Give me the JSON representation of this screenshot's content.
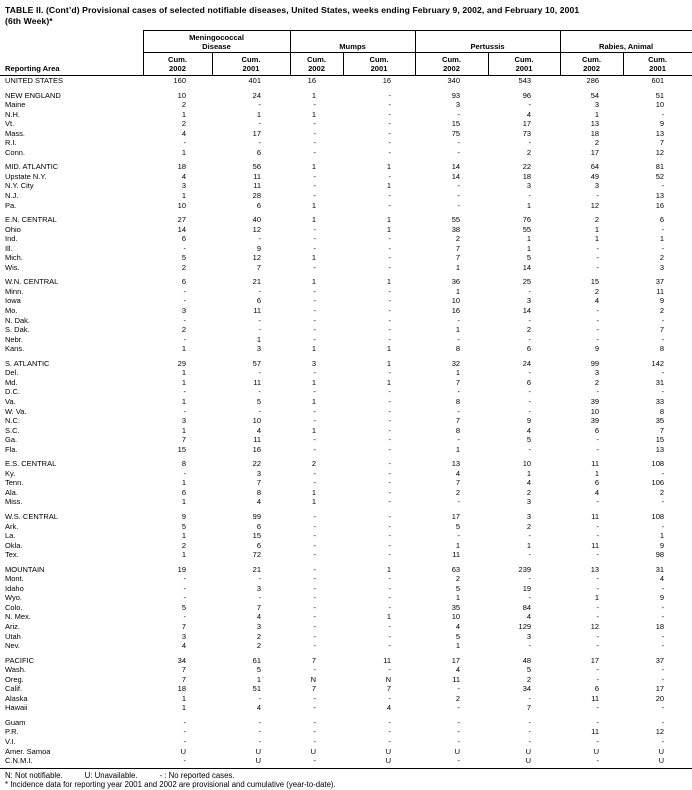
{
  "title": {
    "line1": "TABLE II. (Cont’d) Provisional cases of selected notifiable diseases, United States, weeks ending February 9, 2002, and February 10, 2001",
    "line2": "(6th Week)*"
  },
  "header": {
    "reporting_area": "Reporting Area",
    "groups": [
      "Meningococcal\nDisease",
      "Mumps",
      "Pertussis",
      "Rabies, Animal"
    ],
    "sub": [
      "Cum.\n2002",
      "Cum.\n2001",
      "Cum.\n2002",
      "Cum.\n2001",
      "Cum.\n2002",
      "Cum.\n2001",
      "Cum.\n2002",
      "Cum.\n2001"
    ]
  },
  "sections": [
    {
      "rows": [
        {
          "area": "UNITED STATES",
          "values": [
            "160",
            "401",
            "16",
            "16",
            "340",
            "543",
            "286",
            "601"
          ]
        }
      ]
    },
    {
      "rows": [
        {
          "area": "NEW ENGLAND",
          "values": [
            "10",
            "24",
            "1",
            "-",
            "93",
            "96",
            "54",
            "51"
          ]
        },
        {
          "area": "Maine",
          "values": [
            "2",
            "-",
            "-",
            "-",
            "3",
            "-",
            "3",
            "10"
          ]
        },
        {
          "area": "N.H.",
          "values": [
            "1",
            "1",
            "1",
            "-",
            "-",
            "4",
            "1",
            "-"
          ]
        },
        {
          "area": "Vt.",
          "values": [
            "2",
            "-",
            "-",
            "-",
            "15",
            "17",
            "13",
            "9"
          ]
        },
        {
          "area": "Mass.",
          "values": [
            "4",
            "17",
            "-",
            "-",
            "75",
            "73",
            "18",
            "13"
          ]
        },
        {
          "area": "R.I.",
          "values": [
            "-",
            "-",
            "-",
            "-",
            "-",
            "-",
            "2",
            "7"
          ]
        },
        {
          "area": "Conn.",
          "values": [
            "1",
            "6",
            "-",
            "-",
            "-",
            "2",
            "17",
            "12"
          ]
        }
      ]
    },
    {
      "rows": [
        {
          "area": "MID. ATLANTIC",
          "values": [
            "18",
            "56",
            "1",
            "1",
            "14",
            "22",
            "64",
            "81"
          ]
        },
        {
          "area": "Upstate N.Y.",
          "values": [
            "4",
            "11",
            "-",
            "-",
            "14",
            "18",
            "49",
            "52"
          ]
        },
        {
          "area": "N.Y. City",
          "values": [
            "3",
            "11",
            "-",
            "1",
            "-",
            "3",
            "3",
            "-"
          ]
        },
        {
          "area": "N.J.",
          "values": [
            "1",
            "28",
            "-",
            "-",
            "-",
            "-",
            "-",
            "13"
          ]
        },
        {
          "area": "Pa.",
          "values": [
            "10",
            "6",
            "1",
            "-",
            "-",
            "1",
            "12",
            "16"
          ]
        }
      ]
    },
    {
      "rows": [
        {
          "area": "E.N. CENTRAL",
          "values": [
            "27",
            "40",
            "1",
            "1",
            "55",
            "76",
            "2",
            "6"
          ]
        },
        {
          "area": "Ohio",
          "values": [
            "14",
            "12",
            "-",
            "1",
            "38",
            "55",
            "1",
            "-"
          ]
        },
        {
          "area": "Ind.",
          "values": [
            "6",
            "-",
            "-",
            "-",
            "2",
            "1",
            "1",
            "1"
          ]
        },
        {
          "area": "Ill.",
          "values": [
            "-",
            "9",
            "-",
            "-",
            "7",
            "1",
            "-",
            "-"
          ]
        },
        {
          "area": "Mich.",
          "values": [
            "5",
            "12",
            "1",
            "-",
            "7",
            "5",
            "-",
            "2"
          ]
        },
        {
          "area": "Wis.",
          "values": [
            "2",
            "7",
            "-",
            "-",
            "1",
            "14",
            "-",
            "3"
          ]
        }
      ]
    },
    {
      "rows": [
        {
          "area": "W.N. CENTRAL",
          "values": [
            "6",
            "21",
            "1",
            "1",
            "36",
            "25",
            "15",
            "37"
          ]
        },
        {
          "area": "Minn.",
          "values": [
            "-",
            "-",
            "-",
            "-",
            "1",
            "-",
            "2",
            "11"
          ]
        },
        {
          "area": "Iowa",
          "values": [
            "-",
            "6",
            "-",
            "-",
            "10",
            "3",
            "4",
            "9"
          ]
        },
        {
          "area": "Mo.",
          "values": [
            "3",
            "11",
            "-",
            "-",
            "16",
            "14",
            "-",
            "2"
          ]
        },
        {
          "area": "N. Dak.",
          "values": [
            "-",
            "-",
            "-",
            "-",
            "-",
            "-",
            "-",
            "-"
          ]
        },
        {
          "area": "S. Dak.",
          "values": [
            "2",
            "-",
            "-",
            "-",
            "1",
            "2",
            "-",
            "7"
          ]
        },
        {
          "area": "Nebr.",
          "values": [
            "-",
            "1",
            "-",
            "-",
            "-",
            "-",
            "-",
            "-"
          ]
        },
        {
          "area": "Kans.",
          "values": [
            "1",
            "3",
            "1",
            "1",
            "8",
            "6",
            "9",
            "8"
          ]
        }
      ]
    },
    {
      "rows": [
        {
          "area": "S. ATLANTIC",
          "values": [
            "29",
            "57",
            "3",
            "1",
            "32",
            "24",
            "99",
            "142"
          ]
        },
        {
          "area": "Del.",
          "values": [
            "1",
            "-",
            "-",
            "-",
            "1",
            "-",
            "3",
            "-"
          ]
        },
        {
          "area": "Md.",
          "values": [
            "1",
            "11",
            "1",
            "1",
            "7",
            "6",
            "2",
            "31"
          ]
        },
        {
          "area": "D.C.",
          "values": [
            "-",
            "-",
            "-",
            "-",
            "-",
            "-",
            "-",
            "-"
          ]
        },
        {
          "area": "Va.",
          "values": [
            "1",
            "5",
            "1",
            "-",
            "8",
            "-",
            "39",
            "33"
          ]
        },
        {
          "area": "W. Va.",
          "values": [
            "-",
            "-",
            "-",
            "-",
            "-",
            "-",
            "10",
            "8"
          ]
        },
        {
          "area": "N.C.",
          "values": [
            "3",
            "10",
            "-",
            "-",
            "7",
            "9",
            "39",
            "35"
          ]
        },
        {
          "area": "S.C.",
          "values": [
            "1",
            "4",
            "1",
            "-",
            "8",
            "4",
            "6",
            "7"
          ]
        },
        {
          "area": "Ga.",
          "values": [
            "7",
            "11",
            "-",
            "-",
            "-",
            "5",
            "-",
            "15"
          ]
        },
        {
          "area": "Fla.",
          "values": [
            "15",
            "16",
            "-",
            "-",
            "1",
            "-",
            "-",
            "13"
          ]
        }
      ]
    },
    {
      "rows": [
        {
          "area": "E.S. CENTRAL",
          "values": [
            "8",
            "22",
            "2",
            "-",
            "13",
            "10",
            "11",
            "108"
          ]
        },
        {
          "area": "Ky.",
          "values": [
            "-",
            "3",
            "-",
            "-",
            "4",
            "1",
            "1",
            "-"
          ]
        },
        {
          "area": "Tenn.",
          "values": [
            "1",
            "7",
            "-",
            "-",
            "7",
            "4",
            "6",
            "106"
          ]
        },
        {
          "area": "Ala.",
          "values": [
            "6",
            "8",
            "1",
            "-",
            "2",
            "2",
            "4",
            "2"
          ]
        },
        {
          "area": "Miss.",
          "values": [
            "1",
            "4",
            "1",
            "-",
            "-",
            "3",
            "-",
            "-"
          ]
        }
      ]
    },
    {
      "rows": [
        {
          "area": "W.S. CENTRAL",
          "values": [
            "9",
            "99",
            "-",
            "-",
            "17",
            "3",
            "11",
            "108"
          ]
        },
        {
          "area": "Ark.",
          "values": [
            "5",
            "6",
            "-",
            "-",
            "5",
            "2",
            "-",
            "-"
          ]
        },
        {
          "area": "La.",
          "values": [
            "1",
            "15",
            "-",
            "-",
            "-",
            "-",
            "-",
            "1"
          ]
        },
        {
          "area": "Okla.",
          "values": [
            "2",
            "6",
            "-",
            "-",
            "1",
            "1",
            "11",
            "9"
          ]
        },
        {
          "area": "Tex.",
          "values": [
            "1",
            "72",
            "-",
            "-",
            "11",
            "-",
            "-",
            "98"
          ]
        }
      ]
    },
    {
      "rows": [
        {
          "area": "MOUNTAIN",
          "values": [
            "19",
            "21",
            "-",
            "1",
            "63",
            "239",
            "13",
            "31"
          ]
        },
        {
          "area": "Mont.",
          "values": [
            "-",
            "-",
            "-",
            "-",
            "2",
            "-",
            "-",
            "4"
          ]
        },
        {
          "area": "Idaho",
          "values": [
            "-",
            "3",
            "-",
            "-",
            "5",
            "19",
            "-",
            "-"
          ]
        },
        {
          "area": "Wyo.",
          "values": [
            "-",
            "-",
            "-",
            "-",
            "1",
            "-",
            "1",
            "9"
          ]
        },
        {
          "area": "Colo.",
          "values": [
            "5",
            "7",
            "-",
            "-",
            "35",
            "84",
            "-",
            "-"
          ]
        },
        {
          "area": "N. Mex.",
          "values": [
            "-",
            "4",
            "-",
            "1",
            "10",
            "4",
            "-",
            "-"
          ]
        },
        {
          "area": "Ariz.",
          "values": [
            "7",
            "3",
            "-",
            "-",
            "4",
            "129",
            "12",
            "18"
          ]
        },
        {
          "area": "Utah",
          "values": [
            "3",
            "2",
            "-",
            "-",
            "5",
            "3",
            "-",
            "-"
          ]
        },
        {
          "area": "Nev.",
          "values": [
            "4",
            "2",
            "-",
            "-",
            "1",
            "-",
            "-",
            "-"
          ]
        }
      ]
    },
    {
      "rows": [
        {
          "area": "PACIFIC",
          "values": [
            "34",
            "61",
            "7",
            "11",
            "17",
            "48",
            "17",
            "37"
          ]
        },
        {
          "area": "Wash.",
          "values": [
            "7",
            "5",
            "-",
            "-",
            "4",
            "5",
            "-",
            "-"
          ]
        },
        {
          "area": "Oreg.",
          "values": [
            "7",
            "1",
            "N",
            "N",
            "11",
            "2",
            "-",
            "-"
          ]
        },
        {
          "area": "Calif.",
          "values": [
            "18",
            "51",
            "7",
            "7",
            "-",
            "34",
            "6",
            "17"
          ]
        },
        {
          "area": "Alaska",
          "values": [
            "1",
            "-",
            "-",
            "-",
            "2",
            "-",
            "11",
            "20"
          ]
        },
        {
          "area": "Hawaii",
          "values": [
            "1",
            "4",
            "-",
            "4",
            "-",
            "7",
            "-",
            "-"
          ]
        }
      ]
    },
    {
      "rows": [
        {
          "area": "Guam",
          "values": [
            "-",
            "-",
            "-",
            "-",
            "-",
            "-",
            "-",
            "-"
          ]
        },
        {
          "area": "P.R.",
          "values": [
            "-",
            "-",
            "-",
            "-",
            "-",
            "-",
            "11",
            "12"
          ]
        },
        {
          "area": "V.I.",
          "values": [
            "-",
            "-",
            "-",
            "-",
            "-",
            "-",
            "-",
            "-"
          ]
        },
        {
          "area": "Amer. Samoa",
          "values": [
            "U",
            "U",
            "U",
            "U",
            "U",
            "U",
            "U",
            "U"
          ]
        },
        {
          "area": "C.N.M.I.",
          "values": [
            "-",
            "U",
            "-",
            "U",
            "-",
            "U",
            "-",
            "U"
          ]
        }
      ]
    }
  ],
  "footnotes": {
    "legend_n": "N: Not notifiable.",
    "legend_u": "U: Unavailable.",
    "legend_dash": "- : No reported cases.",
    "incidence": "* Incidence data for reporting year 2001 and 2002 are provisional and cumulative (year-to-date)."
  }
}
